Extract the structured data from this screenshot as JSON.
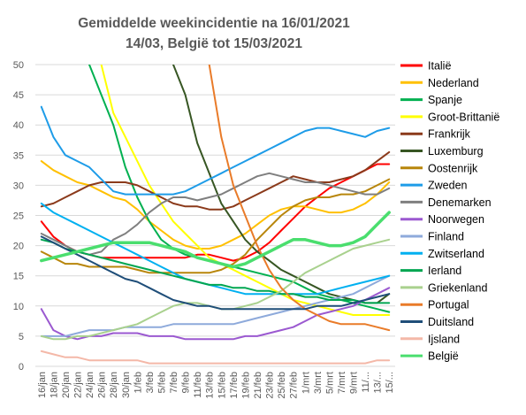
{
  "chart_data": {
    "type": "line",
    "title": [
      "Gemiddelde weekincidentie  na 16/01/2021",
      "14/03, België tot 15/03/2021"
    ],
    "xlabel": "",
    "ylabel": "",
    "ylim": [
      0,
      50
    ],
    "yticks": [
      0,
      5,
      10,
      15,
      20,
      25,
      30,
      35,
      40,
      45,
      50
    ],
    "grid": true,
    "legend_position": "right",
    "categories": [
      "16/jan",
      "18/jan",
      "20/jan",
      "22/jan",
      "24/jan",
      "26/jan",
      "28/jan",
      "30/jan",
      "1/feb",
      "3/feb",
      "5/feb",
      "7/feb",
      "9/feb",
      "11/feb",
      "13/feb",
      "15/feb",
      "17/feb",
      "19/feb",
      "21/feb",
      "23/feb",
      "25/feb",
      "27/feb",
      "1/mrt",
      "3/mrt",
      "5/mrt",
      "7/mrt",
      "9/mrt",
      "11/...",
      "13/...",
      "15/..."
    ],
    "series": [
      {
        "name": "Italië",
        "color": "#ff0000",
        "values": [
          24,
          21.5,
          20,
          19,
          18.5,
          18,
          18,
          18,
          18,
          18,
          18,
          18,
          18,
          18.5,
          18.5,
          18,
          17.5,
          18,
          19,
          20.5,
          22.5,
          24.5,
          26.5,
          28,
          29.5,
          30.5,
          31.5,
          32.5,
          33.5,
          33.5
        ]
      },
      {
        "name": "Nederland",
        "color": "#ffc000",
        "values": [
          34,
          32.5,
          31.5,
          30.5,
          30,
          29,
          28,
          27.5,
          26,
          24,
          22.5,
          21,
          20,
          19.5,
          19.5,
          20,
          21,
          22,
          23.5,
          25,
          26,
          26.5,
          26.5,
          26,
          25.5,
          25.5,
          26,
          27,
          28.5,
          30.5
        ]
      },
      {
        "name": "Spanje",
        "color": "#00b050",
        "values": [
          null,
          null,
          null,
          null,
          50,
          45,
          40,
          33,
          28,
          24,
          21,
          19.5,
          18.5,
          18,
          17.5,
          17,
          16.5,
          16,
          15.5,
          15,
          14.5,
          14,
          13,
          12,
          11.5,
          11,
          10.5,
          10,
          9.5,
          9
        ]
      },
      {
        "name": "Groot-Brittanië",
        "color": "#ffff00",
        "values": [
          null,
          null,
          null,
          null,
          null,
          50,
          42,
          38,
          34,
          30,
          27,
          24,
          22,
          20,
          18,
          17,
          16,
          15,
          14,
          13,
          12,
          11,
          10.5,
          10,
          9.5,
          9,
          8.5,
          8.5,
          8.5,
          8.5
        ]
      },
      {
        "name": "Frankrijk",
        "color": "#8b3a1b",
        "values": [
          26.5,
          27,
          28,
          29,
          30,
          30.5,
          30.5,
          30.5,
          30,
          29,
          28,
          27,
          26.5,
          26.5,
          26,
          26,
          26.5,
          27.5,
          28.5,
          29.5,
          30.5,
          31.5,
          31,
          30.5,
          30.5,
          31,
          31.5,
          32.5,
          34,
          35.5
        ]
      },
      {
        "name": "Luxemburg",
        "color": "#375623",
        "values": [
          null,
          null,
          null,
          null,
          null,
          null,
          null,
          null,
          null,
          null,
          null,
          50,
          45,
          37,
          32,
          27,
          24,
          21,
          19,
          17.5,
          16,
          15,
          14,
          13,
          12,
          11.5,
          11,
          10.5,
          10.5,
          12
        ]
      },
      {
        "name": "Oostenrijk",
        "color": "#b8860b",
        "values": [
          19,
          18,
          17,
          17,
          16.5,
          16.5,
          16.5,
          16.5,
          16,
          15.5,
          15.5,
          15.5,
          15.5,
          15.5,
          15.5,
          16,
          17,
          18.5,
          21,
          23,
          25,
          26.5,
          27.5,
          28,
          28,
          28.5,
          28.5,
          29,
          30,
          31
        ]
      },
      {
        "name": "Zweden",
        "color": "#1e9ce8",
        "values": [
          43,
          38,
          35,
          34,
          33,
          31,
          29,
          28.5,
          28.5,
          28.5,
          28.5,
          28.5,
          29,
          30,
          31,
          32,
          33,
          34,
          35,
          36,
          37,
          38,
          39,
          39.5,
          39.5,
          39,
          38.5,
          38,
          39,
          39.5
        ]
      },
      {
        "name": "Denemarken",
        "color": "#7f7f7f",
        "values": [
          22,
          21,
          20,
          19,
          18.5,
          19,
          21,
          22,
          23.5,
          25.5,
          27,
          28,
          28,
          27.5,
          28,
          28.5,
          29.5,
          30.5,
          31.5,
          32,
          31.5,
          31,
          30.5,
          30.5,
          30,
          29.5,
          29,
          28.5,
          28.5,
          29.5
        ]
      },
      {
        "name": "Noorwegen",
        "color": "#9b59d0",
        "values": [
          9.5,
          6,
          5,
          4.5,
          5,
          5,
          5.5,
          5.5,
          5.5,
          5,
          5,
          5,
          4.5,
          4.5,
          4.5,
          4.5,
          4.5,
          5,
          5,
          5.5,
          6,
          6.5,
          7.5,
          8.5,
          9,
          9.5,
          10,
          11,
          12,
          13
        ]
      },
      {
        "name": "Finland",
        "color": "#8eaadb",
        "values": [
          5,
          5,
          5,
          5.5,
          6,
          6,
          6,
          6.5,
          6.5,
          6.5,
          6.5,
          7,
          7,
          7,
          7,
          7,
          7,
          7.5,
          8,
          8.5,
          9,
          9.5,
          10,
          10.5,
          11,
          11.5,
          12,
          13,
          14,
          15
        ]
      },
      {
        "name": "Zwitserland",
        "color": "#00b0f0",
        "values": [
          27,
          25.5,
          24.5,
          23.5,
          22.5,
          21.5,
          20.5,
          19.5,
          18.5,
          17.5,
          16.5,
          15.5,
          14.5,
          14,
          13.5,
          13,
          12.5,
          12,
          12,
          12,
          12,
          12,
          12,
          12,
          12.5,
          13,
          13.5,
          14,
          14.5,
          15
        ]
      },
      {
        "name": "Ierland",
        "color": "#00a651",
        "values": [
          21,
          20.5,
          19.5,
          19,
          18.5,
          18,
          17.5,
          17,
          16.5,
          16,
          15.5,
          15,
          14.5,
          14,
          13.5,
          13.5,
          13,
          13,
          12.5,
          12.5,
          12,
          12,
          11.5,
          11.5,
          11,
          11,
          11,
          10.5,
          10.5,
          10.5
        ]
      },
      {
        "name": "Griekenland",
        "color": "#a9d18e",
        "values": [
          5,
          4.5,
          4.5,
          5,
          5,
          5.5,
          6,
          6.5,
          7,
          8,
          9,
          10,
          10.5,
          10.5,
          10,
          9.5,
          9.5,
          10,
          10.5,
          11.5,
          12.5,
          14,
          15.5,
          16.5,
          17.5,
          18.5,
          19.5,
          20,
          20.5,
          21
        ]
      },
      {
        "name": "Portugal",
        "color": "#e97b29",
        "values": [
          null,
          null,
          null,
          null,
          null,
          null,
          null,
          null,
          null,
          null,
          null,
          null,
          null,
          null,
          50,
          38,
          30,
          25,
          20,
          16,
          13,
          11,
          9.5,
          8.5,
          7.5,
          7,
          7,
          7,
          6.5,
          6
        ]
      },
      {
        "name": "Duitsland",
        "color": "#1f4e79",
        "values": [
          21.5,
          20.5,
          19.5,
          18.5,
          17.5,
          16.5,
          15.5,
          14.5,
          14,
          13,
          12,
          11,
          10.5,
          10,
          10,
          9.5,
          9.5,
          9.5,
          9.5,
          9.5,
          9.5,
          9.5,
          9.5,
          10,
          10,
          10,
          10.5,
          11,
          11.5,
          12
        ]
      },
      {
        "name": "Ijsland",
        "color": "#f4b8a8",
        "values": [
          2.5,
          2,
          1.5,
          1.5,
          1,
          1,
          1,
          1,
          1,
          0.5,
          0.5,
          0.5,
          0.5,
          0.5,
          0.5,
          0.5,
          0.5,
          0.5,
          0.5,
          0.5,
          0.5,
          0.5,
          0.5,
          0.5,
          0.5,
          0.5,
          0.5,
          0.5,
          1,
          1
        ]
      },
      {
        "name": "België",
        "color": "#4ade6e",
        "values": [
          17.5,
          18,
          18.5,
          19,
          19.5,
          20,
          20.5,
          20.5,
          20.5,
          20.5,
          20,
          19.5,
          19,
          18,
          17.5,
          17,
          16.5,
          17,
          18,
          19,
          20,
          21,
          21,
          20.5,
          20,
          20,
          20.5,
          21.5,
          23.5,
          25.5
        ]
      }
    ]
  }
}
